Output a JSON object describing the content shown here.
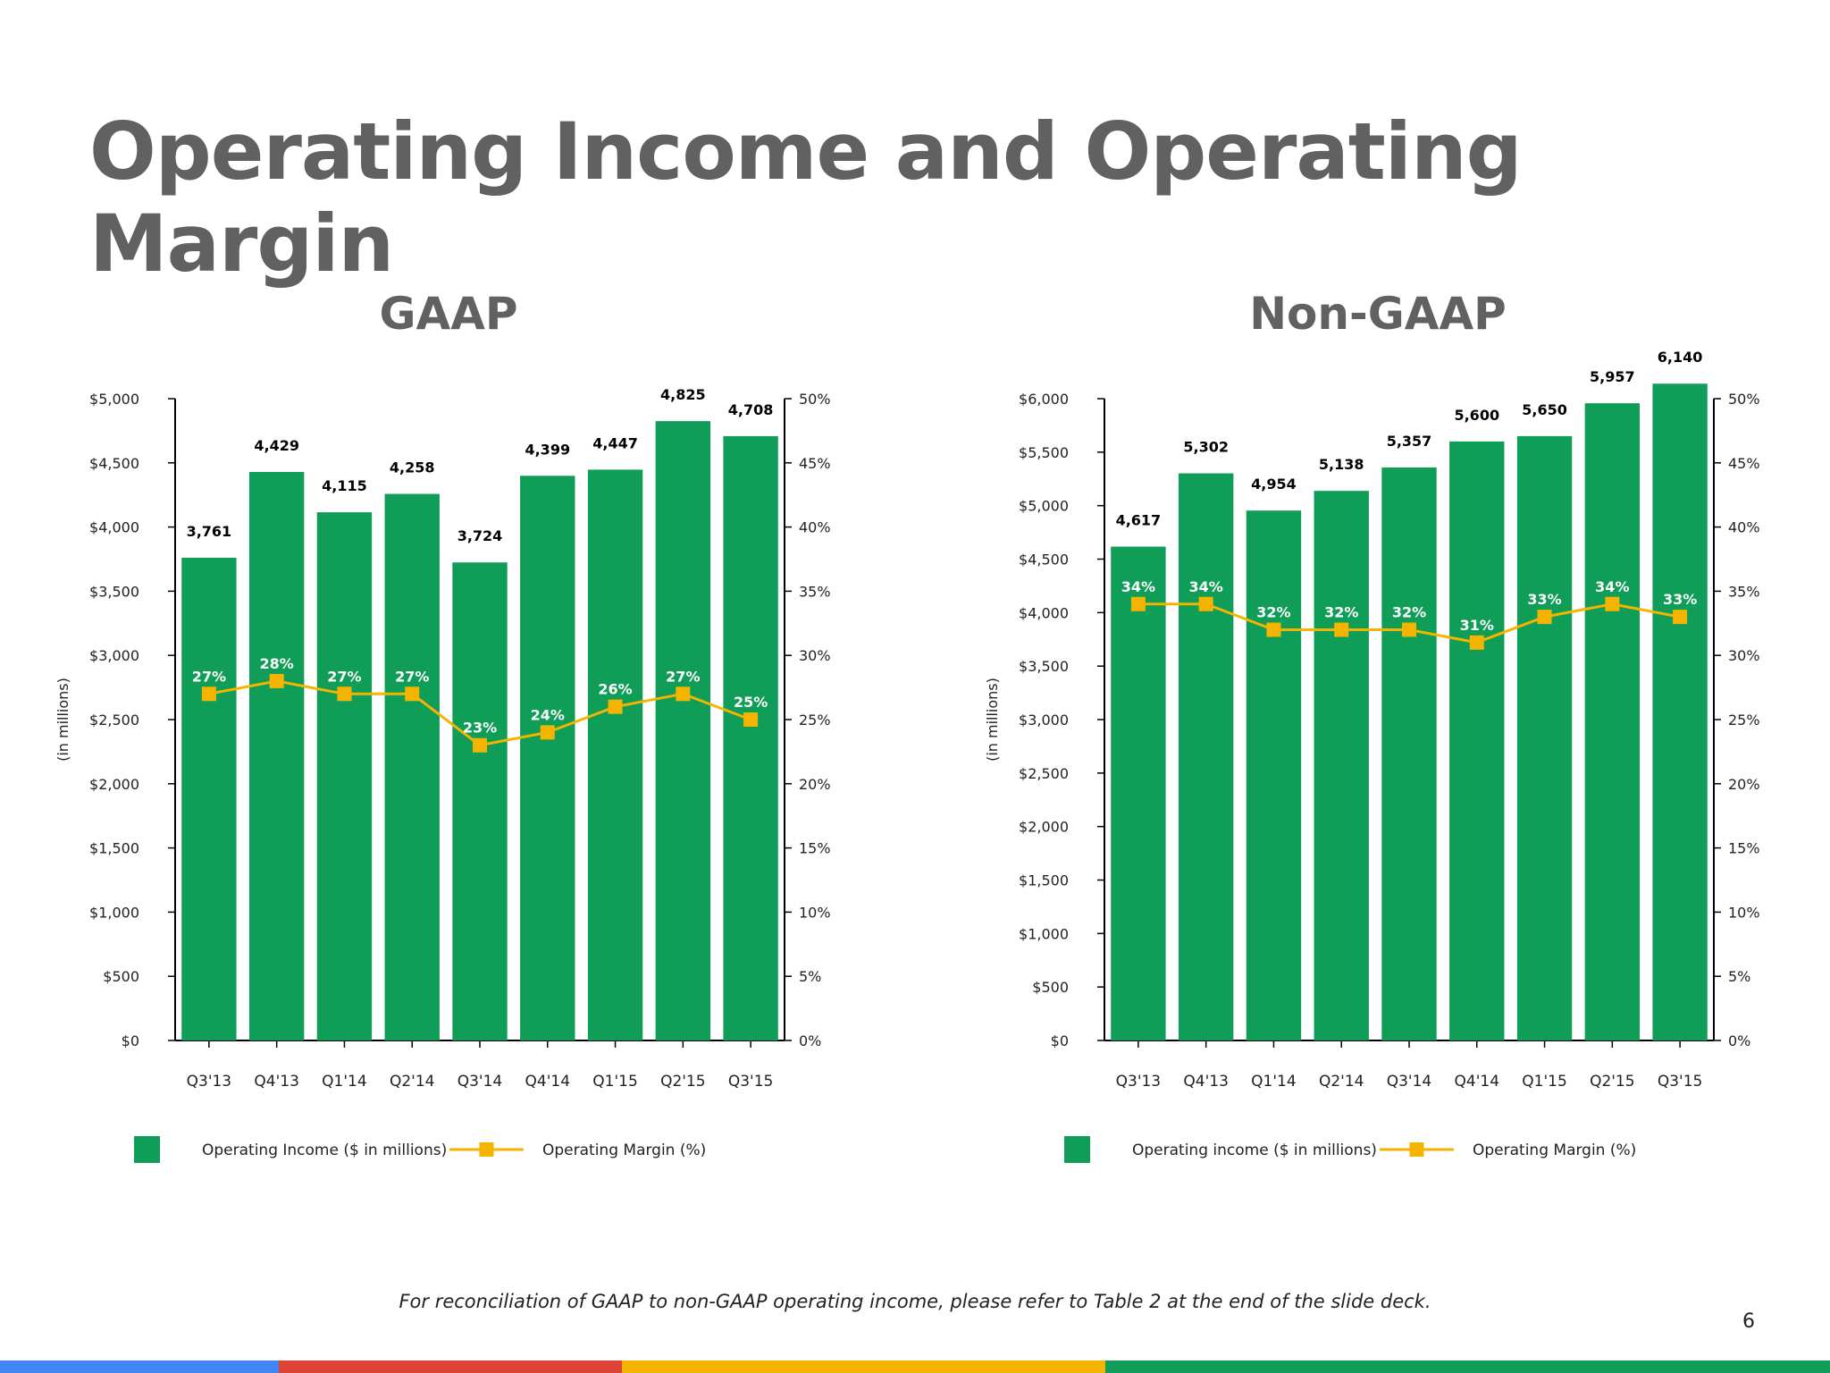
{
  "slide": {
    "title": "Operating Income and Operating Margin",
    "footnote": "For reconciliation of GAAP to non-GAAP operating income, please refer to Table 2 at the end of the slide deck.",
    "page_number": "6"
  },
  "colors": {
    "bar": "#0f9d58",
    "line": "#f4b400",
    "title": "#616161",
    "band_blue": "#4285f4",
    "band_red": "#db4437",
    "band_yellow": "#f4b400",
    "band_green": "#0f9d58"
  },
  "chart_data": [
    {
      "id": "gaap",
      "type": "bar",
      "title": "GAAP",
      "categories": [
        "Q3'13",
        "Q4'13",
        "Q1'14",
        "Q2'14",
        "Q3'14",
        "Q4'14",
        "Q1'15",
        "Q2'15",
        "Q3'15"
      ],
      "series": [
        {
          "name": "Operating Income ($ in millions)",
          "type": "bar",
          "axis": "left",
          "values": [
            3761,
            4429,
            4115,
            4258,
            3724,
            4399,
            4447,
            4825,
            4708
          ],
          "labels": [
            "3,761",
            "4,429",
            "4,115",
            "4,258",
            "3,724",
            "4,399",
            "4,447",
            "4,825",
            "4,708"
          ]
        },
        {
          "name": "Operating Margin (%)",
          "type": "line",
          "axis": "right",
          "values": [
            27,
            28,
            27,
            27,
            23,
            24,
            26,
            27,
            25
          ],
          "labels": [
            "27%",
            "28%",
            "27%",
            "27%",
            "23%",
            "24%",
            "26%",
            "27%",
            "25%"
          ]
        }
      ],
      "ylabel": "(in millions)",
      "ylim": [
        0,
        5000
      ],
      "y_ticks": [
        0,
        500,
        1000,
        1500,
        2000,
        2500,
        3000,
        3500,
        4000,
        4500,
        5000
      ],
      "y_tick_labels": [
        "$0",
        "$500",
        "$1,000",
        "$1,500",
        "$2,000",
        "$2,500",
        "$3,000",
        "$3,500",
        "$4,000",
        "$4,500",
        "$5,000"
      ],
      "y2lim": [
        0,
        50
      ],
      "y2_ticks": [
        0,
        5,
        10,
        15,
        20,
        25,
        30,
        35,
        40,
        45,
        50
      ],
      "y2_tick_labels": [
        "0%",
        "5%",
        "10%",
        "15%",
        "20%",
        "25%",
        "30%",
        "35%",
        "40%",
        "45%",
        "50%"
      ],
      "legend": {
        "bar_label": "Operating Income ($ in millions)",
        "line_label": "Operating Margin (%)",
        "placement": "bottom"
      },
      "grid": false
    },
    {
      "id": "nongaap",
      "type": "bar",
      "title": "Non-GAAP",
      "categories": [
        "Q3'13",
        "Q4'13",
        "Q1'14",
        "Q2'14",
        "Q3'14",
        "Q4'14",
        "Q1'15",
        "Q2'15",
        "Q3'15"
      ],
      "series": [
        {
          "name": "Operating income ($ in millions)",
          "type": "bar",
          "axis": "left",
          "values": [
            4617,
            5302,
            4954,
            5138,
            5357,
            5600,
            5650,
            5957,
            6140
          ],
          "labels": [
            "4,617",
            "5,302",
            "4,954",
            "5,138",
            "5,357",
            "5,600",
            "5,650",
            "5,957",
            "6,140"
          ]
        },
        {
          "name": "Operating Margin (%)",
          "type": "line",
          "axis": "right",
          "values": [
            34,
            34,
            32,
            32,
            32,
            31,
            33,
            34,
            33
          ],
          "labels": [
            "34%",
            "34%",
            "32%",
            "32%",
            "32%",
            "31%",
            "33%",
            "34%",
            "33%"
          ]
        }
      ],
      "ylabel": "(in millions)",
      "ylim": [
        0,
        6000
      ],
      "y_ticks": [
        0,
        500,
        1000,
        1500,
        2000,
        2500,
        3000,
        3500,
        4000,
        4500,
        5000,
        5500,
        6000
      ],
      "y_tick_labels": [
        "$0",
        "$500",
        "$1,000",
        "$1,500",
        "$2,000",
        "$2,500",
        "$3,000",
        "$3,500",
        "$4,000",
        "$4,500",
        "$5,000",
        "$5,500",
        "$6,000"
      ],
      "y2lim": [
        0,
        50
      ],
      "y2_ticks": [
        0,
        5,
        10,
        15,
        20,
        25,
        30,
        35,
        40,
        45,
        50
      ],
      "y2_tick_labels": [
        "0%",
        "5%",
        "10%",
        "15%",
        "20%",
        "25%",
        "30%",
        "35%",
        "40%",
        "45%",
        "50%"
      ],
      "legend": {
        "bar_label": "Operating income ($ in millions)",
        "line_label": "Operating Margin (%)",
        "placement": "bottom"
      },
      "grid": false
    }
  ]
}
